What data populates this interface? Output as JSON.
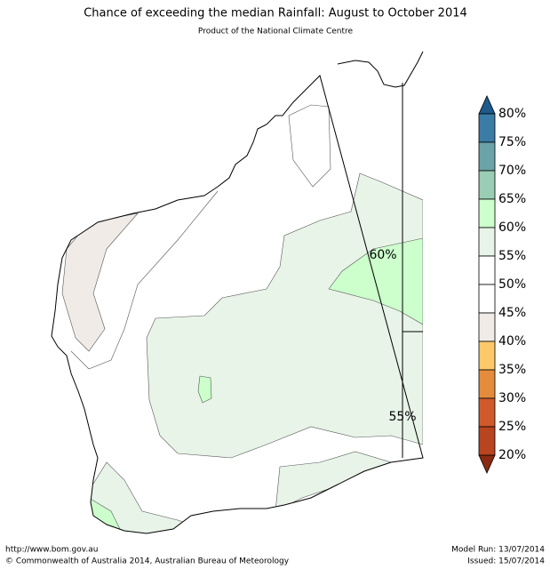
{
  "header": {
    "title": "Chance of exceeding the median Rainfall: August to October 2014",
    "subtitle": "Product of the National Climate Centre"
  },
  "map": {
    "contour_labels": [
      "60%",
      "55%"
    ]
  },
  "colorbar": {
    "labels": [
      "80%",
      "75%",
      "70%",
      "65%",
      "60%",
      "55%",
      "50%",
      "45%",
      "40%",
      "35%",
      "30%",
      "25%",
      "20%"
    ],
    "colors": [
      "#3b7ca6",
      "#6aa3a8",
      "#99cdb4",
      "#ccffcc",
      "#e8f4e8",
      "#ffffff",
      "#ffffff",
      "#f0ebe6",
      "#fdc86a",
      "#e48c3c",
      "#d05a2c",
      "#b84420"
    ],
    "over_color": "#1f5a8c",
    "under_color": "#8b2a12"
  },
  "footer": {
    "url": "http://www.bom.gov.au",
    "copyright": "©  Commonwealth of Australia 2014, Australian Bureau of Meteorology",
    "model_run": "Model Run: 13/07/2014",
    "issued": "Issued: 15/07/2014"
  }
}
